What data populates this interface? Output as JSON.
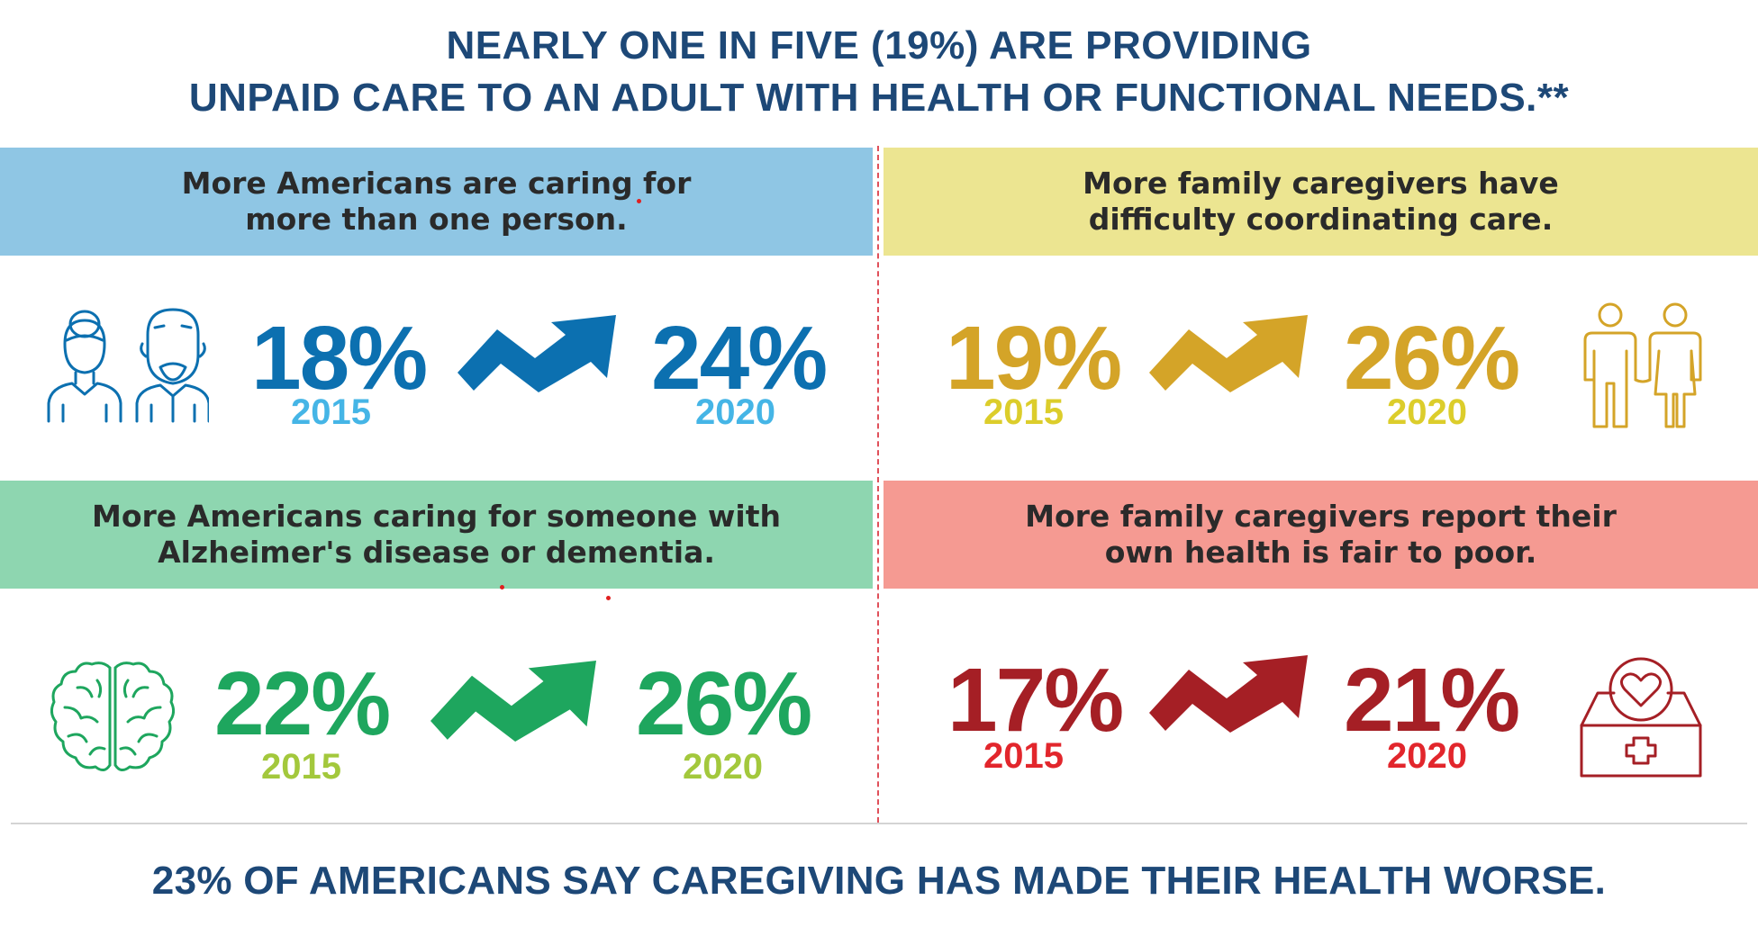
{
  "headline": {
    "line1": "NEARLY ONE IN FIVE (19%) ARE PROVIDING",
    "line2": "UNPAID CARE TO AN ADULT WITH HEALTH OR FUNCTIONAL NEEDS.**"
  },
  "panels": [
    {
      "title_line1": "More Americans are caring for",
      "title_line2": "more than one person.",
      "banner_color": "#8fc6e4",
      "start_pct": "18%",
      "start_year": "2015",
      "end_pct": "24%",
      "end_year": "2020",
      "icon": "elderly-couple-icon",
      "accent": "#0c70b0"
    },
    {
      "title_line1": "More family caregivers have",
      "title_line2": "difficulty coordinating care.",
      "banner_color": "#ece591",
      "start_pct": "19%",
      "start_year": "2015",
      "end_pct": "26%",
      "end_year": "2020",
      "icon": "two-people-holding-hands-icon",
      "accent": "#d4a428"
    },
    {
      "title_line1": "More Americans caring for someone with",
      "title_line2": "Alzheimer's disease or dementia.",
      "banner_color": "#8ed6b0",
      "start_pct": "22%",
      "start_year": "2015",
      "end_pct": "26%",
      "end_year": "2020",
      "icon": "brain-icon",
      "accent": "#1ea65e"
    },
    {
      "title_line1": "More family caregivers report their",
      "title_line2": "own health is fair to poor.",
      "banner_color": "#f59a92",
      "start_pct": "17%",
      "start_year": "2015",
      "end_pct": "21%",
      "end_year": "2020",
      "icon": "heart-care-box-icon",
      "accent": "#a51f25"
    }
  ],
  "footer": "23% OF AMERICANS SAY CAREGIVING HAS MADE THEIR HEALTH WORSE."
}
